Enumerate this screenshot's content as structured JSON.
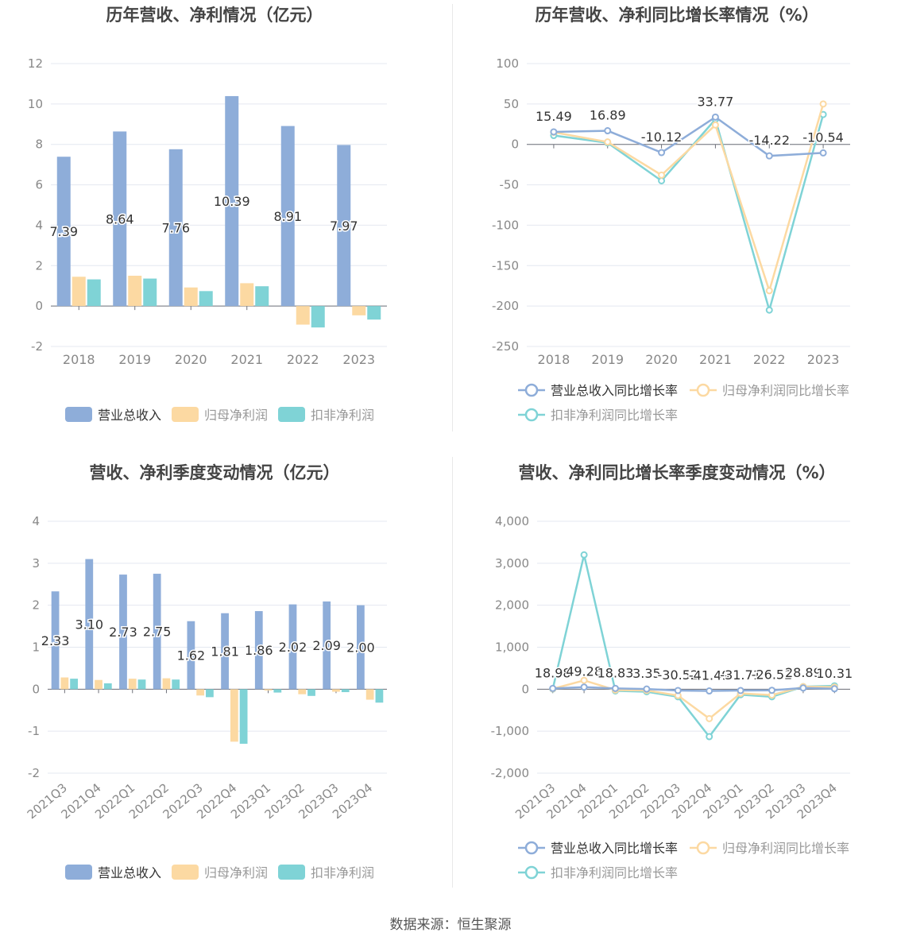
{
  "source_text": "数据来源：恒生聚源",
  "colors": {
    "revenue": "#8eadd9",
    "net_profit": "#fcd9a2",
    "deducted": "#7fd3d6"
  },
  "chart_data": [
    {
      "id": "annual-revenue-profit",
      "type": "bar",
      "title": "历年营收、净利情况（亿元）",
      "categories": [
        "2018",
        "2019",
        "2020",
        "2021",
        "2022",
        "2023"
      ],
      "ylim": [
        -2,
        12
      ],
      "yticks": [
        "-2",
        "0",
        "2",
        "4",
        "6",
        "8",
        "10",
        "12"
      ],
      "series": [
        {
          "name": "营业总收入",
          "values": [
            7.39,
            8.64,
            7.76,
            10.39,
            8.91,
            7.97
          ],
          "labels": [
            "7.39",
            "8.64",
            "7.76",
            "10.39",
            "8.91",
            "7.97"
          ]
        },
        {
          "name": "归母净利润",
          "values": [
            1.45,
            1.5,
            0.92,
            1.13,
            -0.92,
            -0.46
          ]
        },
        {
          "name": "扣非净利润",
          "values": [
            1.32,
            1.36,
            0.74,
            0.98,
            -1.06,
            -0.67
          ]
        }
      ],
      "legend_position": "bottom",
      "grid": true
    },
    {
      "id": "annual-growth-rate",
      "type": "line",
      "title": "历年营收、净利同比增长率情况（%）",
      "categories": [
        "2018",
        "2019",
        "2020",
        "2021",
        "2022",
        "2023"
      ],
      "ylim": [
        -250,
        100
      ],
      "yticks": [
        "-250",
        "-200",
        "-150",
        "-100",
        "-50",
        "0",
        "50",
        "100"
      ],
      "series": [
        {
          "name": "营业总收入同比增长率",
          "values": [
            15.49,
            16.89,
            -10.12,
            33.77,
            -14.22,
            -10.54
          ],
          "labels": [
            "15.49",
            "16.89",
            "-10.12",
            "33.77",
            "-14.22",
            "-10.54"
          ]
        },
        {
          "name": "归母净利润同比增长率",
          "values": [
            15,
            3,
            -38,
            24,
            -181,
            50
          ]
        },
        {
          "name": "扣非净利润同比增长率",
          "values": [
            11,
            2,
            -45,
            31,
            -205,
            37
          ]
        }
      ],
      "legend_position": "bottom",
      "grid": true
    },
    {
      "id": "quarterly-revenue-profit",
      "type": "bar",
      "title": "营收、净利季度变动情况（亿元）",
      "categories": [
        "2021Q3",
        "2021Q4",
        "2022Q1",
        "2022Q2",
        "2022Q3",
        "2022Q4",
        "2023Q1",
        "2023Q2",
        "2023Q3",
        "2023Q4"
      ],
      "ylim": [
        -2,
        4
      ],
      "yticks": [
        "-2",
        "-1",
        "0",
        "1",
        "2",
        "3",
        "4"
      ],
      "series": [
        {
          "name": "营业总收入",
          "values": [
            2.33,
            3.1,
            2.73,
            2.75,
            1.62,
            1.81,
            1.86,
            2.02,
            2.09,
            2.0
          ],
          "labels": [
            "2.33",
            "3.10",
            "2.73",
            "2.75",
            "1.62",
            "1.81",
            "1.86",
            "2.02",
            "2.09",
            "2.00"
          ]
        },
        {
          "name": "归母净利润",
          "values": [
            0.28,
            0.22,
            0.25,
            0.26,
            -0.15,
            -1.25,
            -0.03,
            -0.12,
            -0.06,
            -0.25
          ]
        },
        {
          "name": "扣非净利润",
          "values": [
            0.25,
            0.14,
            0.23,
            0.23,
            -0.19,
            -1.3,
            -0.08,
            -0.16,
            -0.07,
            -0.32
          ]
        }
      ],
      "legend_position": "bottom",
      "grid": true
    },
    {
      "id": "quarterly-growth-rate",
      "type": "line",
      "title": "营收、净利同比增长率季度变动情况（%）",
      "categories": [
        "2021Q3",
        "2021Q4",
        "2022Q1",
        "2022Q2",
        "2022Q3",
        "2022Q4",
        "2023Q1",
        "2023Q2",
        "2023Q3",
        "2023Q4"
      ],
      "ylim": [
        -2000,
        4000
      ],
      "yticks": [
        "-2,000",
        "-1,000",
        "0",
        "1,000",
        "2,000",
        "3,000",
        "4,000"
      ],
      "series": [
        {
          "name": "营业总收入同比增长率",
          "values": [
            18.98,
            49.28,
            18.83,
            3.35,
            -30.52,
            -41.49,
            -31.71,
            -26.52,
            28.89,
            10.31
          ],
          "labels": [
            "18.98",
            "49.28",
            "18.83",
            "3.35",
            "-30.52",
            "-41.49",
            "-31.71",
            "-26.52",
            "28.89",
            "10.31"
          ]
        },
        {
          "name": "归母净利润同比增长率",
          "values": [
            10,
            210,
            -20,
            -30,
            -150,
            -700,
            -100,
            -140,
            60,
            50
          ]
        },
        {
          "name": "扣非净利润同比增长率",
          "values": [
            5,
            3200,
            -40,
            -60,
            -180,
            -1130,
            -130,
            -180,
            60,
            80
          ]
        }
      ],
      "legend_position": "bottom",
      "grid": true
    }
  ]
}
